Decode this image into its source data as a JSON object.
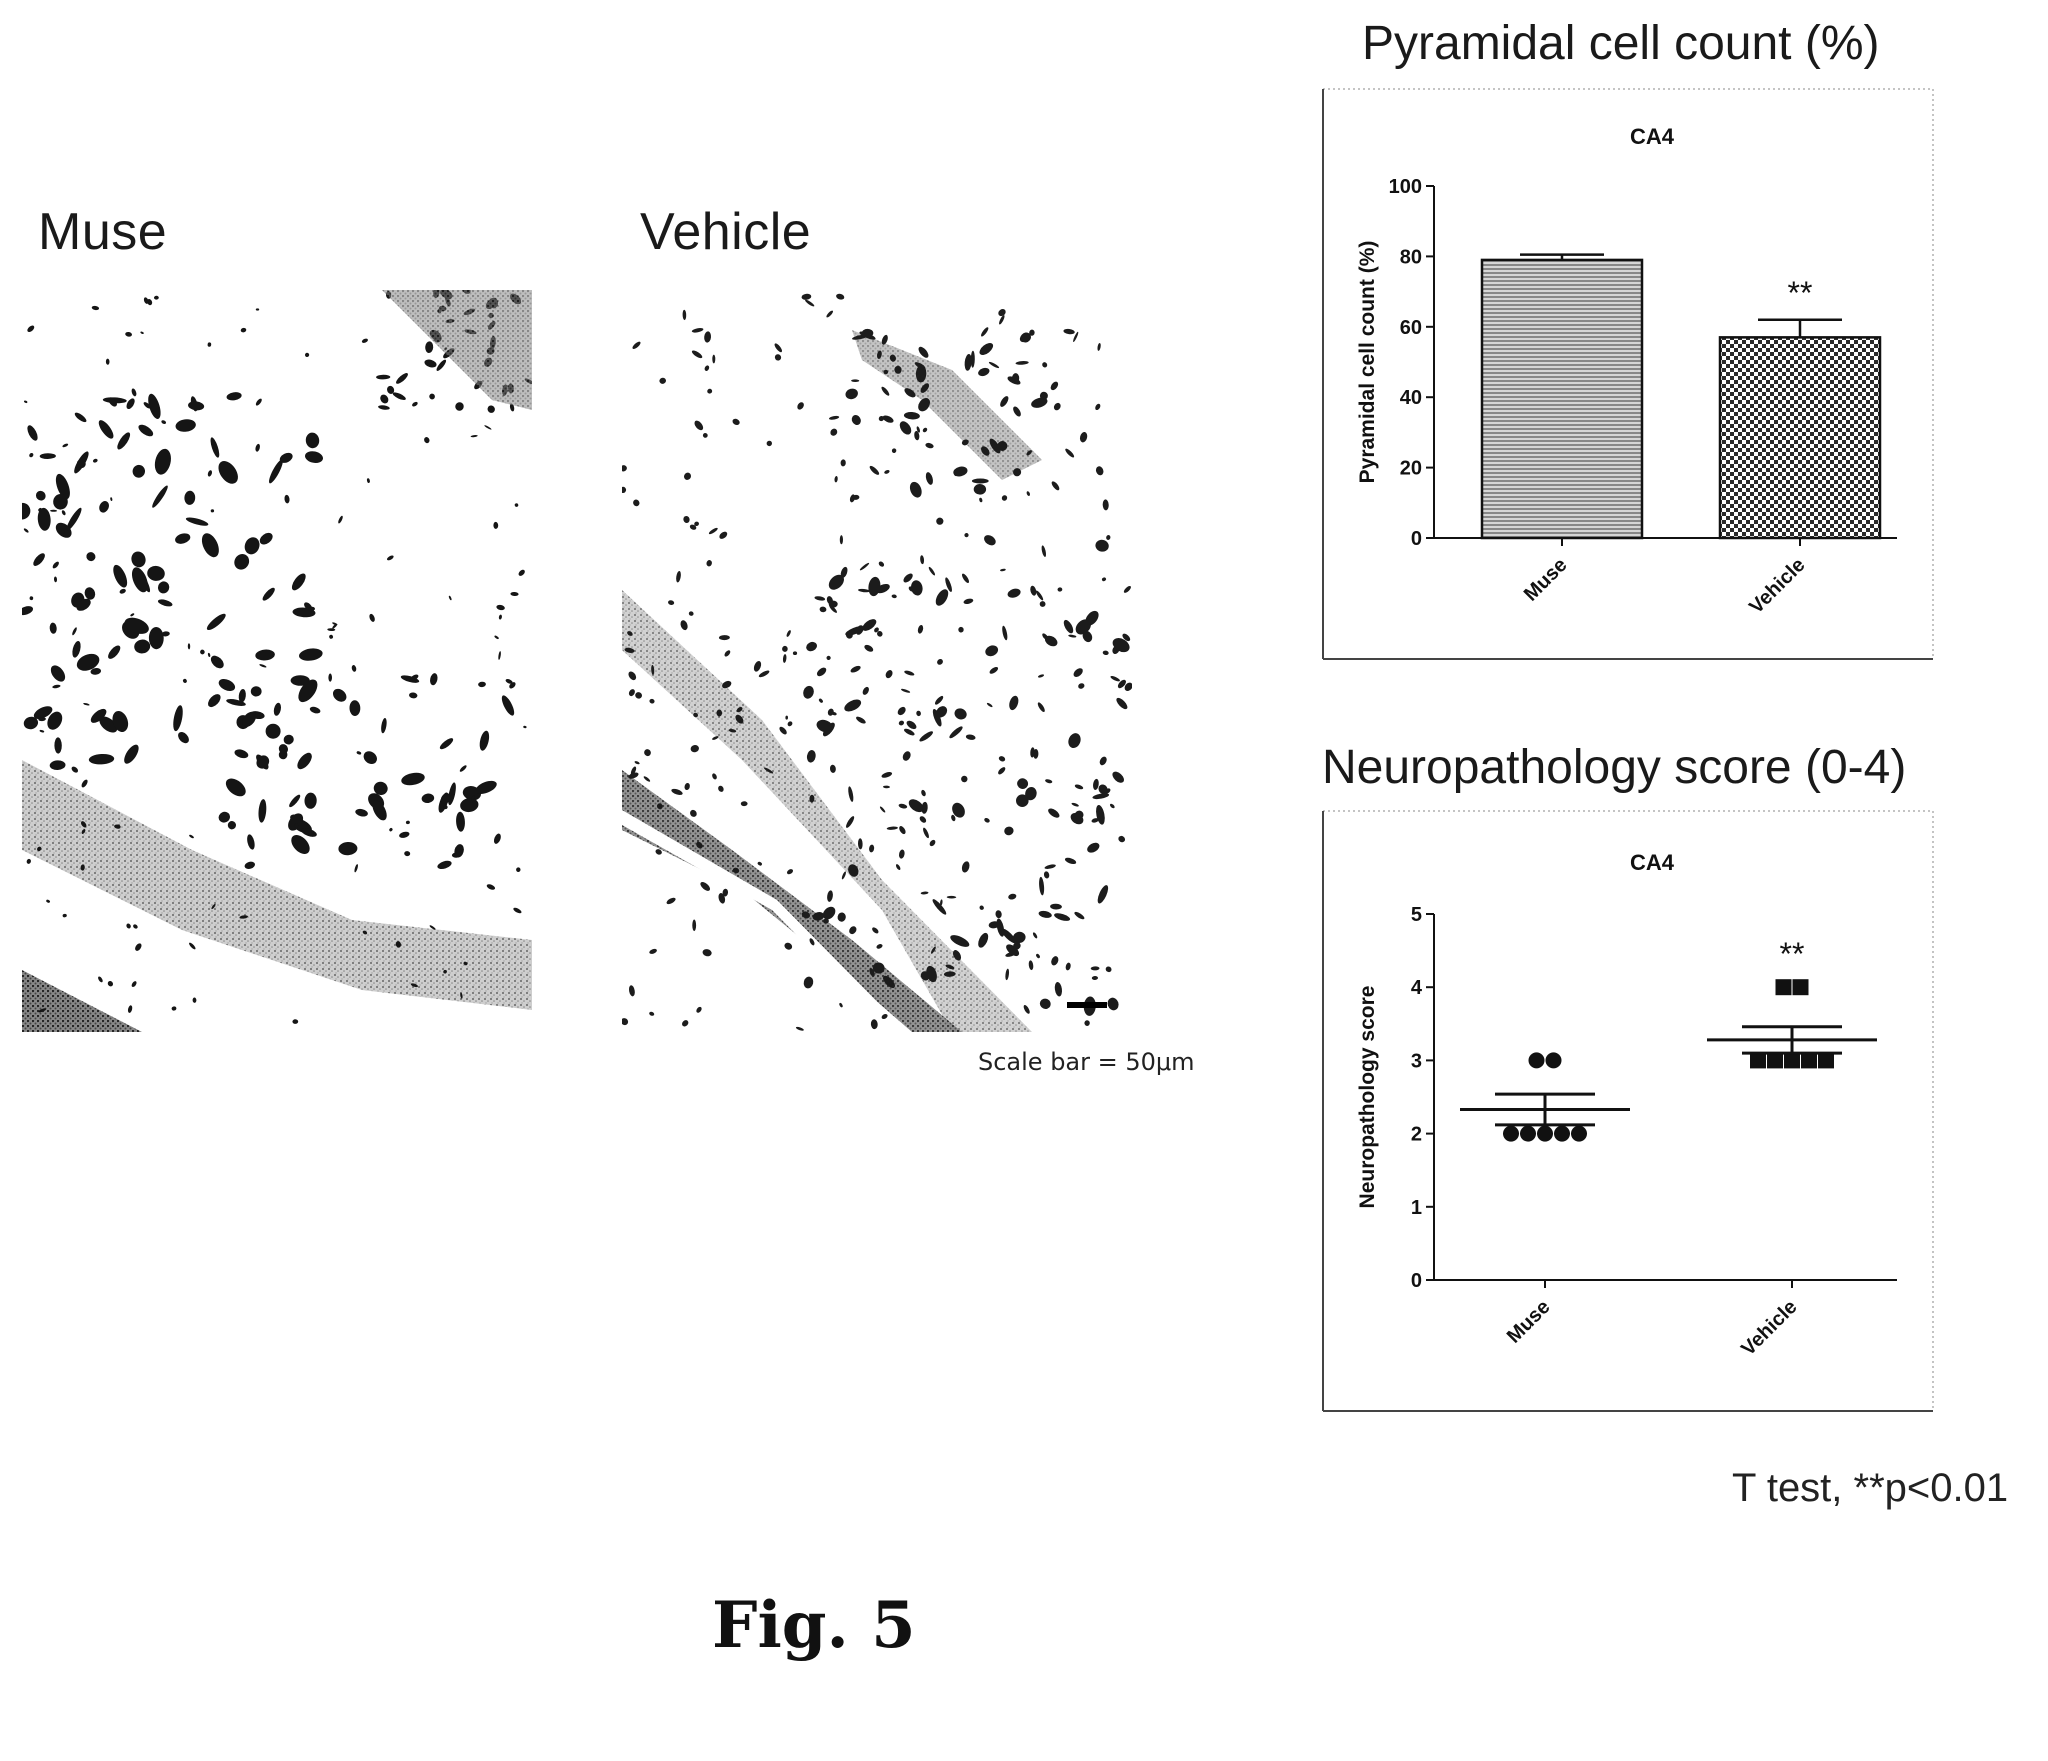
{
  "micrographs": {
    "left_label": "Muse",
    "right_label": "Vehicle",
    "scale_note": "Scale bar = 50μm"
  },
  "figure_label": "Fig. 5",
  "stats_note": "T test, **p<0.01",
  "colors": {
    "ink": "#1a1a1a",
    "bar_fill": "#8a8a8a"
  },
  "chart_data": [
    {
      "type": "bar",
      "heading": "Pyramidal cell count (%)",
      "title": "CA4",
      "ylabel": "Pyramidal cell count (%)",
      "xlabel": "",
      "categories": [
        "Muse",
        "Vehicle"
      ],
      "values": [
        79,
        57
      ],
      "errors": [
        1.5,
        5
      ],
      "significance": [
        "",
        "**"
      ],
      "ylim": [
        0,
        100
      ],
      "yticks": [
        0,
        20,
        40,
        60,
        80,
        100
      ],
      "patterns": [
        "horizontal-lines",
        "checkerboard"
      ]
    },
    {
      "type": "scatter",
      "heading": "Neuropathology score (0-4)",
      "title": "CA4",
      "ylabel": "Neuropathology score",
      "xlabel": "",
      "categories": [
        "Muse",
        "Vehicle"
      ],
      "series": [
        {
          "category": "Muse",
          "marker": "circle",
          "values": [
            3,
            3,
            2,
            2,
            2,
            2,
            2
          ],
          "mean": 2.33,
          "sem": 0.21
        },
        {
          "category": "Vehicle",
          "marker": "square",
          "values": [
            4,
            4,
            3,
            3,
            3,
            3,
            3
          ],
          "mean": 3.28,
          "sem": 0.18
        }
      ],
      "significance": [
        "",
        "**"
      ],
      "ylim": [
        0,
        5
      ],
      "yticks": [
        0,
        1,
        2,
        3,
        4,
        5
      ]
    }
  ]
}
